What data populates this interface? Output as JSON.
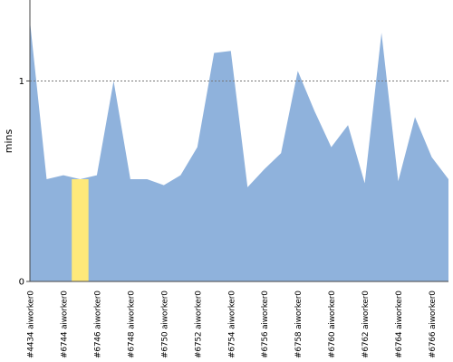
{
  "chart_data": {
    "type": "area",
    "ylabel": "mins",
    "ylim": [
      0,
      1.3
    ],
    "yticks": [
      {
        "value": 0,
        "label": "0"
      },
      {
        "value": 1,
        "label": "1"
      }
    ],
    "reference_line": {
      "value": 1,
      "style": "dotted"
    },
    "colors": {
      "area": "#8fb2dc",
      "highlight": "#fee97a",
      "axis": "#444444",
      "reference_line": "#777777"
    },
    "x_labels": [
      "#4434 aiworker0",
      "#6744 aiworker0",
      "#6746 aiworker0",
      "#6748 aiworker0",
      "#6750 aiworker0",
      "#6752 aiworker0",
      "#6754 aiworker0",
      "#6756 aiworker0",
      "#6758 aiworker0",
      "#6760 aiworker0",
      "#6762 aiworker0",
      "#6764 aiworker0",
      "#6766 aiworker0"
    ],
    "x": [
      0,
      1,
      2,
      3,
      4,
      5,
      6,
      7,
      8,
      9,
      10,
      11,
      12,
      13,
      14,
      15,
      16,
      17,
      18,
      19,
      20,
      21,
      22,
      23,
      24,
      25
    ],
    "values": [
      1.3,
      0.51,
      0.53,
      0.51,
      0.53,
      1.0,
      0.51,
      0.51,
      0.48,
      0.53,
      0.67,
      1.14,
      1.15,
      0.47,
      0.56,
      0.64,
      1.05,
      0.85,
      0.67,
      0.78,
      0.49,
      1.24,
      0.5,
      0.82,
      0.62,
      0.51
    ],
    "highlight": {
      "x_start": 2.5,
      "x_end": 3.5,
      "value": 0.51
    }
  }
}
